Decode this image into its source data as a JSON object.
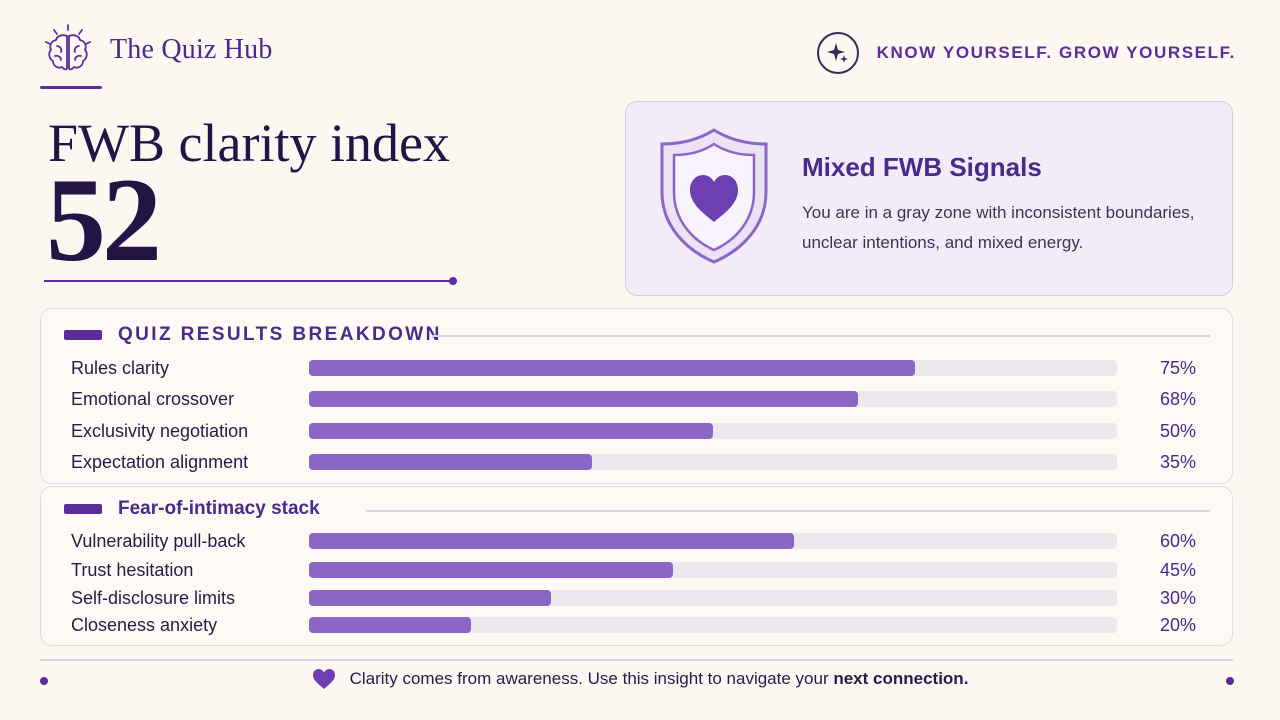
{
  "header": {
    "brand_name": "The Quiz Hub",
    "brand_icon": "brain-icon",
    "tagline": "KNOW YOURSELF. GROW YOURSELF.",
    "tagline_icon": "sparkle-icon"
  },
  "hero": {
    "title": "FWB clarity index",
    "score": "52"
  },
  "result": {
    "icon": "shield-heart-icon",
    "title": "Mixed FWB Signals",
    "description": "You are in a gray zone with inconsistent boundaries, unclear intentions, and mixed energy."
  },
  "sections": [
    {
      "label": "QUIZ RESULTS BREAKDOWN",
      "items": [
        {
          "label": "Rules clarity",
          "value": 75,
          "pct": "75%"
        },
        {
          "label": "Emotional crossover",
          "value": 68,
          "pct": "68%"
        },
        {
          "label": "Exclusivity negotiation",
          "value": 50,
          "pct": "50%"
        },
        {
          "label": "Expectation alignment",
          "value": 35,
          "pct": "35%"
        }
      ]
    },
    {
      "label": "Fear-of-intimacy stack",
      "items": [
        {
          "label": "Vulnerability pull-back",
          "value": 60,
          "pct": "60%"
        },
        {
          "label": "Trust hesitation",
          "value": 45,
          "pct": "45%"
        },
        {
          "label": "Self-disclosure limits",
          "value": 30,
          "pct": "30%"
        },
        {
          "label": "Closeness anxiety",
          "value": 20,
          "pct": "20%"
        }
      ]
    }
  ],
  "footer": {
    "icon": "heart-icon",
    "text": "Clarity comes from awareness. Use this insight to navigate your ",
    "emphasis": "next connection."
  },
  "colors": {
    "accent": "#5a2d9b",
    "bar_fill": "#8b66c4",
    "bar_track": "#ede7ee",
    "background": "#fcf7f1"
  }
}
